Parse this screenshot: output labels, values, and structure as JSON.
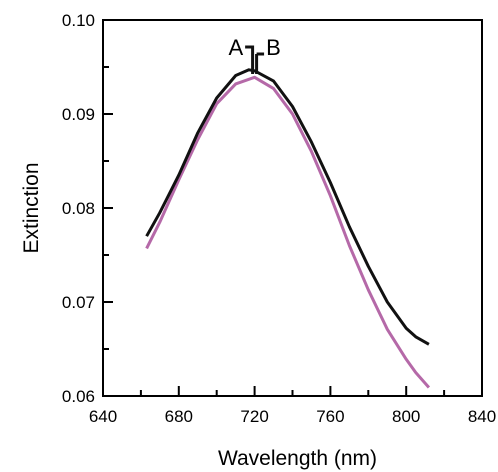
{
  "chart_data": {
    "type": "line",
    "xlabel": "Wavelength (nm)",
    "ylabel": "Extinction",
    "xlim": [
      640,
      840
    ],
    "ylim": [
      0.06,
      0.1
    ],
    "x_ticks": [
      640,
      680,
      720,
      760,
      800,
      840
    ],
    "x_tick_labels": [
      "640",
      "680",
      "720",
      "760",
      "800",
      "840"
    ],
    "y_ticks": [
      0.06,
      0.07,
      0.08,
      0.09,
      0.1
    ],
    "y_tick_labels": [
      "0.06",
      "0.07",
      "0.08",
      "0.09",
      "0.10"
    ],
    "x_minor_step": 20,
    "y_minor_step": 0.005,
    "grid": false,
    "series": [
      {
        "name": "A",
        "color": "#111111",
        "x": [
          663,
          670,
          680,
          690,
          700,
          710,
          717,
          720,
          730,
          740,
          750,
          760,
          770,
          780,
          790,
          800,
          805,
          812
        ],
        "y": [
          0.077,
          0.0795,
          0.0835,
          0.088,
          0.0917,
          0.0941,
          0.0947,
          0.0946,
          0.0935,
          0.0908,
          0.087,
          0.0827,
          0.078,
          0.0738,
          0.07,
          0.0672,
          0.0663,
          0.0655
        ]
      },
      {
        "name": "B",
        "color": "#b569a8",
        "x": [
          663,
          670,
          680,
          690,
          700,
          710,
          720,
          730,
          740,
          750,
          760,
          770,
          780,
          790,
          800,
          805,
          812
        ],
        "y": [
          0.0757,
          0.0785,
          0.083,
          0.0873,
          0.0911,
          0.0932,
          0.0939,
          0.0927,
          0.09,
          0.086,
          0.0813,
          0.076,
          0.0713,
          0.0671,
          0.0639,
          0.0625,
          0.0609
        ]
      }
    ],
    "annotations": [
      {
        "label": "A",
        "x": 715
      },
      {
        "label": "B",
        "x": 725
      }
    ],
    "peak_marker_x": 720
  }
}
